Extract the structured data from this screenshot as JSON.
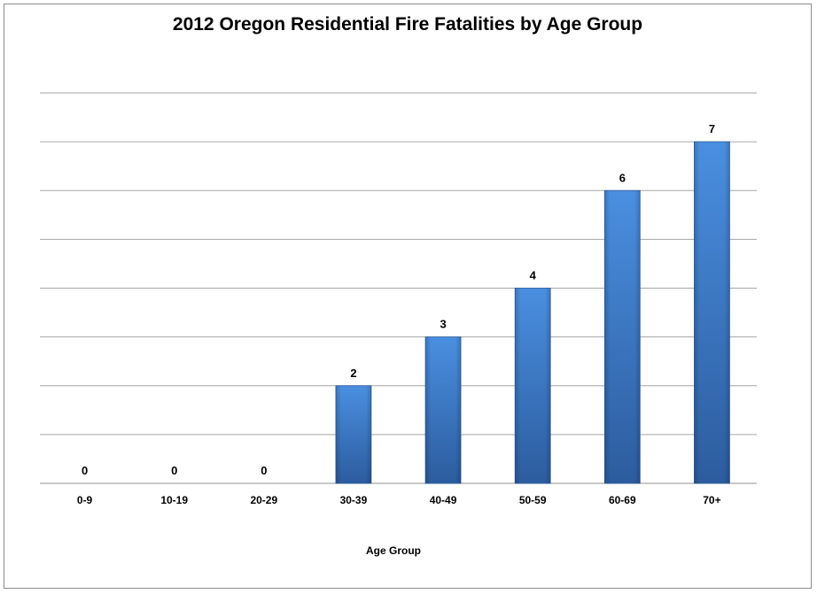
{
  "chart_data": {
    "type": "bar",
    "title": "2012 Oregon Residential Fire Fatalities by Age Group",
    "xlabel": "Age Group",
    "ylabel": "",
    "categories": [
      "0-9",
      "10-19",
      "20-29",
      "30-39",
      "40-49",
      "50-59",
      "60-69",
      "70+"
    ],
    "values": [
      0,
      0,
      0,
      2,
      3,
      4,
      6,
      7
    ],
    "ylim": [
      0,
      8
    ],
    "grid": true,
    "legend": "none",
    "data_labels": true,
    "colors": {
      "bar": "#3d7ed0",
      "bar_dark": "#2e5fa3",
      "grid": "#a6a6a6"
    }
  }
}
